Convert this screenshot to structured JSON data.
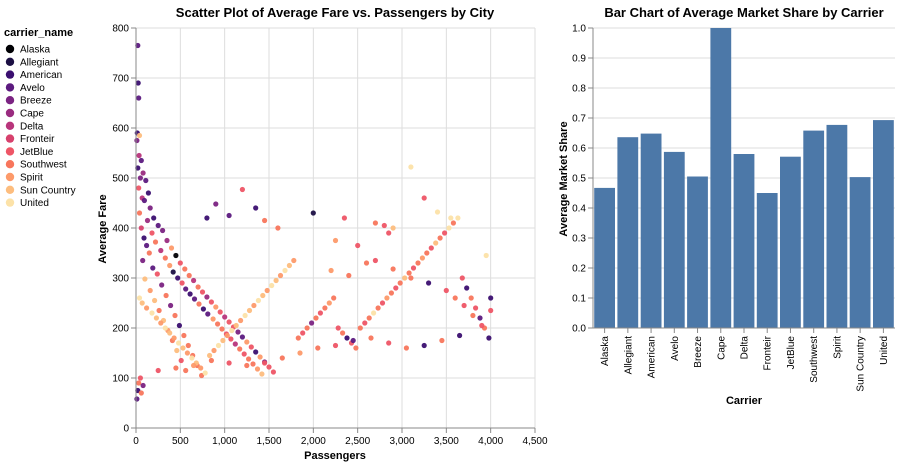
{
  "chart_data": [
    {
      "type": "scatter",
      "title": "Scatter Plot of Average Fare vs. Passengers by City",
      "xlabel": "Passengers",
      "ylabel": "Average Fare",
      "xlim": [
        0,
        4500
      ],
      "ylim": [
        0,
        800
      ],
      "x_ticks": [
        "0",
        "500",
        "1,000",
        "1,500",
        "2,000",
        "2,500",
        "3,000",
        "3,500",
        "4,000",
        "4,500"
      ],
      "y_ticks": [
        "0",
        "100",
        "200",
        "300",
        "400",
        "500",
        "600",
        "700",
        "800"
      ],
      "grid": true,
      "legend_title": "carrier_name",
      "legend_position": "left",
      "categories": [
        "Alaska",
        "Allegiant",
        "American",
        "Avelo",
        "Breeze",
        "Cape",
        "Delta",
        "Fronteir",
        "JetBlue",
        "Southwest",
        "Spirit",
        "Sun Country",
        "United"
      ],
      "colors": [
        "#000004",
        "#1c1044",
        "#3b0f70",
        "#5c1a7f",
        "#7b2382",
        "#9a2c80",
        "#b8357b",
        "#d7416d",
        "#ee5566",
        "#f8765c",
        "#fd9a6a",
        "#fdbd7e",
        "#fce2a8"
      ],
      "points": [
        [
          20,
          765,
          3
        ],
        [
          25,
          690,
          2
        ],
        [
          30,
          660,
          3
        ],
        [
          15,
          590,
          2
        ],
        [
          40,
          585,
          11
        ],
        [
          10,
          575,
          4
        ],
        [
          35,
          545,
          6
        ],
        [
          60,
          535,
          3
        ],
        [
          20,
          520,
          2
        ],
        [
          80,
          510,
          5
        ],
        [
          50,
          500,
          4
        ],
        [
          110,
          495,
          3
        ],
        [
          30,
          480,
          8
        ],
        [
          140,
          470,
          2
        ],
        [
          70,
          460,
          6
        ],
        [
          95,
          455,
          3
        ],
        [
          160,
          440,
          4
        ],
        [
          40,
          430,
          9
        ],
        [
          200,
          420,
          2
        ],
        [
          130,
          415,
          5
        ],
        [
          250,
          405,
          3
        ],
        [
          60,
          400,
          7
        ],
        [
          300,
          395,
          4
        ],
        [
          180,
          390,
          8
        ],
        [
          90,
          380,
          2
        ],
        [
          350,
          375,
          5
        ],
        [
          220,
          372,
          9
        ],
        [
          120,
          365,
          3
        ],
        [
          400,
          360,
          10
        ],
        [
          280,
          355,
          6
        ],
        [
          150,
          350,
          9
        ],
        [
          450,
          345,
          0
        ],
        [
          330,
          340,
          9
        ],
        [
          75,
          335,
          4
        ],
        [
          500,
          330,
          8
        ],
        [
          380,
          325,
          10
        ],
        [
          190,
          320,
          3
        ],
        [
          550,
          318,
          9
        ],
        [
          420,
          312,
          1
        ],
        [
          240,
          308,
          8
        ],
        [
          600,
          305,
          9
        ],
        [
          470,
          300,
          2
        ],
        [
          100,
          298,
          11
        ],
        [
          650,
          295,
          6
        ],
        [
          520,
          290,
          8
        ],
        [
          290,
          286,
          4
        ],
        [
          700,
          282,
          9
        ],
        [
          560,
          278,
          3
        ],
        [
          160,
          275,
          10
        ],
        [
          750,
          272,
          8
        ],
        [
          610,
          268,
          2
        ],
        [
          340,
          265,
          9
        ],
        [
          800,
          262,
          5
        ],
        [
          660,
          258,
          3
        ],
        [
          210,
          255,
          11
        ],
        [
          850,
          252,
          8
        ],
        [
          710,
          248,
          9
        ],
        [
          390,
          245,
          4
        ],
        [
          900,
          242,
          10
        ],
        [
          760,
          238,
          2
        ],
        [
          260,
          235,
          9
        ],
        [
          950,
          232,
          8
        ],
        [
          810,
          228,
          3
        ],
        [
          440,
          225,
          9
        ],
        [
          1000,
          222,
          6
        ],
        [
          870,
          218,
          10
        ],
        [
          310,
          215,
          11
        ],
        [
          1050,
          212,
          8
        ],
        [
          920,
          208,
          9
        ],
        [
          490,
          205,
          2
        ],
        [
          1100,
          202,
          8
        ],
        [
          970,
          198,
          9
        ],
        [
          360,
          195,
          10
        ],
        [
          1150,
          192,
          4
        ],
        [
          1020,
          188,
          8
        ],
        [
          540,
          185,
          9
        ],
        [
          1200,
          182,
          3
        ],
        [
          1070,
          178,
          8
        ],
        [
          410,
          175,
          9
        ],
        [
          1250,
          172,
          10
        ],
        [
          1120,
          168,
          6
        ],
        [
          590,
          165,
          9
        ],
        [
          1300,
          162,
          8
        ],
        [
          1170,
          158,
          9
        ],
        [
          460,
          155,
          11
        ],
        [
          1350,
          152,
          2
        ],
        [
          1220,
          148,
          8
        ],
        [
          640,
          145,
          9
        ],
        [
          1400,
          142,
          10
        ],
        [
          1270,
          138,
          9
        ],
        [
          510,
          135,
          8
        ],
        [
          1450,
          132,
          4
        ],
        [
          1320,
          128,
          9
        ],
        [
          690,
          125,
          9
        ],
        [
          1500,
          122,
          8
        ],
        [
          1370,
          118,
          10
        ],
        [
          560,
          115,
          9
        ],
        [
          1550,
          112,
          8
        ],
        [
          1420,
          108,
          11
        ],
        [
          740,
          105,
          9
        ],
        [
          50,
          100,
          8
        ],
        [
          30,
          90,
          9
        ],
        [
          80,
          85,
          4
        ],
        [
          20,
          75,
          2
        ],
        [
          60,
          70,
          9
        ],
        [
          10,
          58,
          3
        ],
        [
          40,
          260,
          12
        ],
        [
          70,
          250,
          11
        ],
        [
          120,
          240,
          10
        ],
        [
          180,
          230,
          12
        ],
        [
          230,
          220,
          11
        ],
        [
          280,
          210,
          10
        ],
        [
          330,
          200,
          12
        ],
        [
          380,
          190,
          11
        ],
        [
          430,
          180,
          10
        ],
        [
          480,
          170,
          12
        ],
        [
          530,
          160,
          11
        ],
        [
          580,
          150,
          10
        ],
        [
          630,
          140,
          12
        ],
        [
          680,
          130,
          11
        ],
        [
          730,
          120,
          10
        ],
        [
          780,
          110,
          12
        ],
        [
          830,
          145,
          11
        ],
        [
          880,
          155,
          10
        ],
        [
          930,
          165,
          12
        ],
        [
          980,
          175,
          11
        ],
        [
          1030,
          185,
          10
        ],
        [
          1080,
          195,
          12
        ],
        [
          1130,
          205,
          11
        ],
        [
          1180,
          215,
          10
        ],
        [
          1230,
          225,
          12
        ],
        [
          1280,
          235,
          11
        ],
        [
          1330,
          245,
          10
        ],
        [
          1380,
          255,
          12
        ],
        [
          1430,
          265,
          11
        ],
        [
          1480,
          275,
          10
        ],
        [
          1530,
          285,
          12
        ],
        [
          1580,
          295,
          11
        ],
        [
          1630,
          305,
          10
        ],
        [
          1680,
          315,
          12
        ],
        [
          1730,
          325,
          11
        ],
        [
          1780,
          335,
          10
        ],
        [
          1830,
          180,
          9
        ],
        [
          1880,
          190,
          8
        ],
        [
          1930,
          200,
          9
        ],
        [
          1980,
          210,
          4
        ],
        [
          2030,
          220,
          9
        ],
        [
          2080,
          230,
          8
        ],
        [
          2130,
          240,
          9
        ],
        [
          2180,
          250,
          10
        ],
        [
          2230,
          260,
          9
        ],
        [
          2280,
          200,
          8
        ],
        [
          2330,
          190,
          9
        ],
        [
          2380,
          180,
          2
        ],
        [
          2430,
          170,
          8
        ],
        [
          2480,
          160,
          9
        ],
        [
          2530,
          200,
          9
        ],
        [
          2580,
          210,
          8
        ],
        [
          2630,
          220,
          9
        ],
        [
          2680,
          230,
          12
        ],
        [
          2730,
          240,
          9
        ],
        [
          2780,
          250,
          8
        ],
        [
          2830,
          260,
          10
        ],
        [
          2880,
          270,
          9
        ],
        [
          2930,
          280,
          8
        ],
        [
          2980,
          290,
          9
        ],
        [
          3030,
          300,
          11
        ],
        [
          3080,
          310,
          9
        ],
        [
          3130,
          320,
          8
        ],
        [
          3180,
          330,
          9
        ],
        [
          3230,
          340,
          10
        ],
        [
          3280,
          350,
          9
        ],
        [
          3330,
          360,
          8
        ],
        [
          3380,
          370,
          11
        ],
        [
          3430,
          380,
          9
        ],
        [
          3480,
          390,
          8
        ],
        [
          3530,
          400,
          12
        ],
        [
          3580,
          410,
          9
        ],
        [
          3630,
          420,
          12
        ],
        [
          3680,
          300,
          8
        ],
        [
          3730,
          280,
          2
        ],
        [
          3780,
          260,
          9
        ],
        [
          3830,
          240,
          8
        ],
        [
          3880,
          220,
          3
        ],
        [
          3930,
          200,
          9
        ],
        [
          3980,
          180,
          2
        ],
        [
          4000,
          260,
          2
        ],
        [
          4000,
          235,
          8
        ],
        [
          3950,
          345,
          12
        ],
        [
          3100,
          522,
          12
        ],
        [
          3250,
          460,
          8
        ],
        [
          3400,
          432,
          12
        ],
        [
          3550,
          420,
          12
        ],
        [
          2700,
          410,
          9
        ],
        [
          2800,
          405,
          8
        ],
        [
          2900,
          400,
          11
        ],
        [
          2850,
          390,
          8
        ],
        [
          1200,
          477,
          8
        ],
        [
          900,
          448,
          4
        ],
        [
          1350,
          440,
          2
        ],
        [
          2000,
          430,
          1
        ],
        [
          1050,
          425,
          3
        ],
        [
          800,
          420,
          2
        ],
        [
          1450,
          415,
          9
        ],
        [
          2350,
          420,
          8
        ],
        [
          1600,
          400,
          9
        ],
        [
          2250,
          375,
          10
        ],
        [
          2500,
          365,
          8
        ],
        [
          2600,
          330,
          9
        ],
        [
          2200,
          315,
          10
        ],
        [
          2400,
          305,
          9
        ],
        [
          2700,
          335,
          8
        ],
        [
          2900,
          318,
          9
        ],
        [
          3100,
          300,
          9
        ],
        [
          3300,
          290,
          2
        ],
        [
          3500,
          275,
          8
        ],
        [
          3600,
          260,
          9
        ],
        [
          3700,
          245,
          8
        ],
        [
          3800,
          225,
          9
        ],
        [
          3900,
          205,
          8
        ],
        [
          3650,
          185,
          2
        ],
        [
          3450,
          175,
          9
        ],
        [
          3250,
          165,
          2
        ],
        [
          3050,
          160,
          9
        ],
        [
          2850,
          170,
          8
        ],
        [
          2650,
          180,
          9
        ],
        [
          2450,
          175,
          3
        ],
        [
          2250,
          165,
          8
        ],
        [
          2050,
          160,
          9
        ],
        [
          1850,
          150,
          10
        ],
        [
          1650,
          140,
          9
        ],
        [
          1450,
          130,
          8
        ],
        [
          1250,
          125,
          9
        ],
        [
          1050,
          130,
          8
        ],
        [
          850,
          135,
          9
        ],
        [
          650,
          125,
          10
        ],
        [
          450,
          120,
          9
        ],
        [
          250,
          115,
          8
        ]
      ]
    },
    {
      "type": "bar",
      "title": "Bar Chart of Average Market Share by Carrier",
      "xlabel": "Carrier",
      "ylabel": "Average Market Share",
      "ylim": [
        0,
        1
      ],
      "y_ticks": [
        "0.0",
        "0.1",
        "0.2",
        "0.3",
        "0.4",
        "0.5",
        "0.6",
        "0.7",
        "0.8",
        "0.9",
        "1.0"
      ],
      "grid": true,
      "categories": [
        "Alaska",
        "Allegiant",
        "American",
        "Avelo",
        "Breeze",
        "Cape",
        "Delta",
        "Fronteir",
        "JetBlue",
        "Southwest",
        "Spirit",
        "Sun Country",
        "United"
      ],
      "values": [
        0.467,
        0.636,
        0.648,
        0.587,
        0.505,
        1.0,
        0.58,
        0.45,
        0.571,
        0.658,
        0.677,
        0.503,
        0.693
      ],
      "bar_color": "#4c78a8"
    }
  ]
}
